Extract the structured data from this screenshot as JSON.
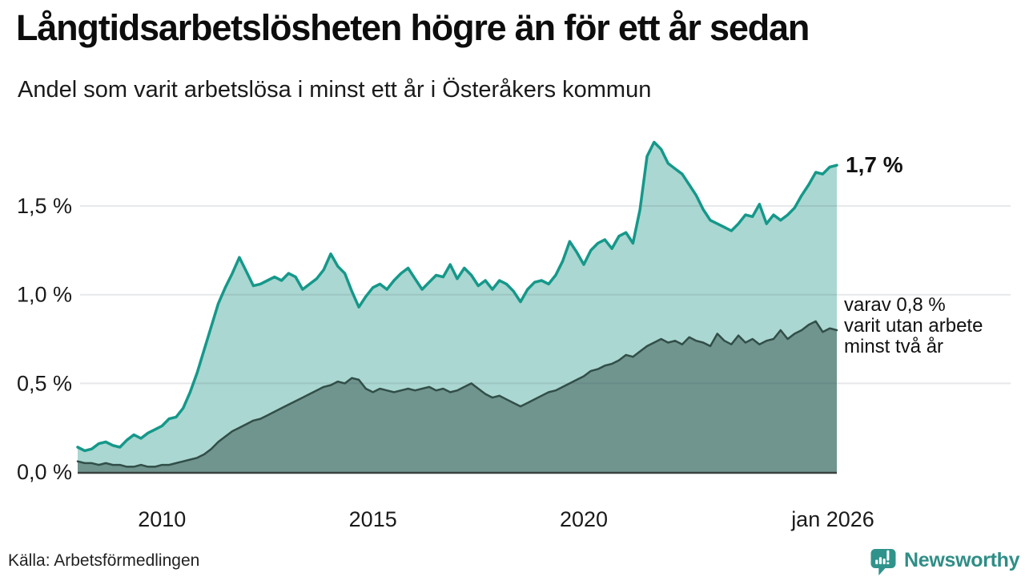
{
  "header": {
    "title": "Långtidsarbetslösheten högre än för ett år sedan",
    "subtitle": "Andel som varit arbetslösa i minst ett år i Österåkers kommun"
  },
  "annotations": {
    "primary": "1,7 %",
    "secondary_lines": [
      "varav 0,8 %",
      "varit utan arbete",
      "minst två år"
    ]
  },
  "footer": {
    "source": "Källa: Arbetsförmedlingen",
    "brand": "Newsworthy"
  },
  "colors": {
    "line_1yr": "#15988a",
    "fill_1yr": "#aad7d1",
    "line_2yr": "#324e48",
    "fill_2yr": "#6f958e",
    "baseline": "#3a423f",
    "gridline": "rgba(70,80,90,0.13)",
    "brand_teal": "#2f8e86"
  },
  "chart_data": {
    "type": "area",
    "title": "Långtidsarbetslösheten högre än för ett år sedan",
    "subtitle": "Andel som varit arbetslösa i minst ett år i Österåkers kommun",
    "unit": "%",
    "grid": true,
    "xlim": [
      2008,
      2026
    ],
    "ylim": [
      0,
      1.9
    ],
    "x": {
      "start": 2008.0,
      "step_years": 0.1666667,
      "end": 2026.0,
      "count": 109
    },
    "x_ticks": [
      {
        "label": "2010",
        "year": 2010,
        "dx": 0
      },
      {
        "label": "2015",
        "year": 2015,
        "dx": 0
      },
      {
        "label": "2020",
        "year": 2020,
        "dx": 0
      },
      {
        "label": "jan 2026",
        "year": 2026,
        "dx": -5
      }
    ],
    "y_ticks": [
      {
        "label": "0,0 %",
        "value": 0.0
      },
      {
        "label": "0,5 %",
        "value": 0.5
      },
      {
        "label": "1,0 %",
        "value": 1.0
      },
      {
        "label": "1,5 %",
        "value": 1.5
      }
    ],
    "y_gridlines": [
      0.5,
      1.0,
      1.5
    ],
    "series": [
      {
        "name": "Andel arbetslösa minst ett år",
        "end_value_label": "1,7 %",
        "end_value": 1.73,
        "line_color": "#15988a",
        "fill_color": "#aad7d1",
        "line_width": 3.5,
        "values": [
          0.14,
          0.12,
          0.13,
          0.16,
          0.17,
          0.15,
          0.14,
          0.18,
          0.21,
          0.19,
          0.22,
          0.24,
          0.26,
          0.3,
          0.31,
          0.36,
          0.45,
          0.56,
          0.69,
          0.82,
          0.95,
          1.04,
          1.12,
          1.21,
          1.13,
          1.05,
          1.06,
          1.08,
          1.1,
          1.08,
          1.12,
          1.1,
          1.03,
          1.06,
          1.09,
          1.14,
          1.23,
          1.16,
          1.12,
          1.02,
          0.93,
          0.99,
          1.04,
          1.06,
          1.03,
          1.08,
          1.12,
          1.15,
          1.09,
          1.03,
          1.07,
          1.11,
          1.1,
          1.17,
          1.09,
          1.15,
          1.11,
          1.05,
          1.08,
          1.03,
          1.08,
          1.06,
          1.02,
          0.96,
          1.03,
          1.07,
          1.08,
          1.06,
          1.11,
          1.19,
          1.3,
          1.24,
          1.17,
          1.25,
          1.29,
          1.31,
          1.26,
          1.33,
          1.35,
          1.29,
          1.48,
          1.78,
          1.86,
          1.82,
          1.74,
          1.71,
          1.68,
          1.62,
          1.56,
          1.48,
          1.42,
          1.4,
          1.38,
          1.36,
          1.4,
          1.45,
          1.44,
          1.51,
          1.4,
          1.45,
          1.42,
          1.45,
          1.49,
          1.56,
          1.62,
          1.69,
          1.68,
          1.72,
          1.73
        ]
      },
      {
        "name": "varav utan arbete minst två år",
        "end_value_label": "varav 0,8 % varit utan arbete minst två år",
        "end_value": 0.8,
        "line_color": "#324e48",
        "fill_color": "#6f958e",
        "line_width": 2.5,
        "values": [
          0.06,
          0.05,
          0.05,
          0.04,
          0.05,
          0.04,
          0.04,
          0.03,
          0.03,
          0.04,
          0.03,
          0.03,
          0.04,
          0.04,
          0.05,
          0.06,
          0.07,
          0.08,
          0.1,
          0.13,
          0.17,
          0.2,
          0.23,
          0.25,
          0.27,
          0.29,
          0.3,
          0.32,
          0.34,
          0.36,
          0.38,
          0.4,
          0.42,
          0.44,
          0.46,
          0.48,
          0.49,
          0.51,
          0.5,
          0.53,
          0.52,
          0.47,
          0.45,
          0.47,
          0.46,
          0.45,
          0.46,
          0.47,
          0.46,
          0.47,
          0.48,
          0.46,
          0.47,
          0.45,
          0.46,
          0.48,
          0.5,
          0.47,
          0.44,
          0.42,
          0.43,
          0.41,
          0.39,
          0.37,
          0.39,
          0.41,
          0.43,
          0.45,
          0.46,
          0.48,
          0.5,
          0.52,
          0.54,
          0.57,
          0.58,
          0.6,
          0.61,
          0.63,
          0.66,
          0.65,
          0.68,
          0.71,
          0.73,
          0.75,
          0.73,
          0.74,
          0.72,
          0.76,
          0.74,
          0.73,
          0.71,
          0.78,
          0.74,
          0.72,
          0.77,
          0.73,
          0.75,
          0.72,
          0.74,
          0.75,
          0.8,
          0.75,
          0.78,
          0.8,
          0.83,
          0.85,
          0.79,
          0.81,
          0.8
        ]
      }
    ],
    "legend_position": "end-of-line-labels",
    "source": "Källa: Arbetsförmedlingen"
  }
}
